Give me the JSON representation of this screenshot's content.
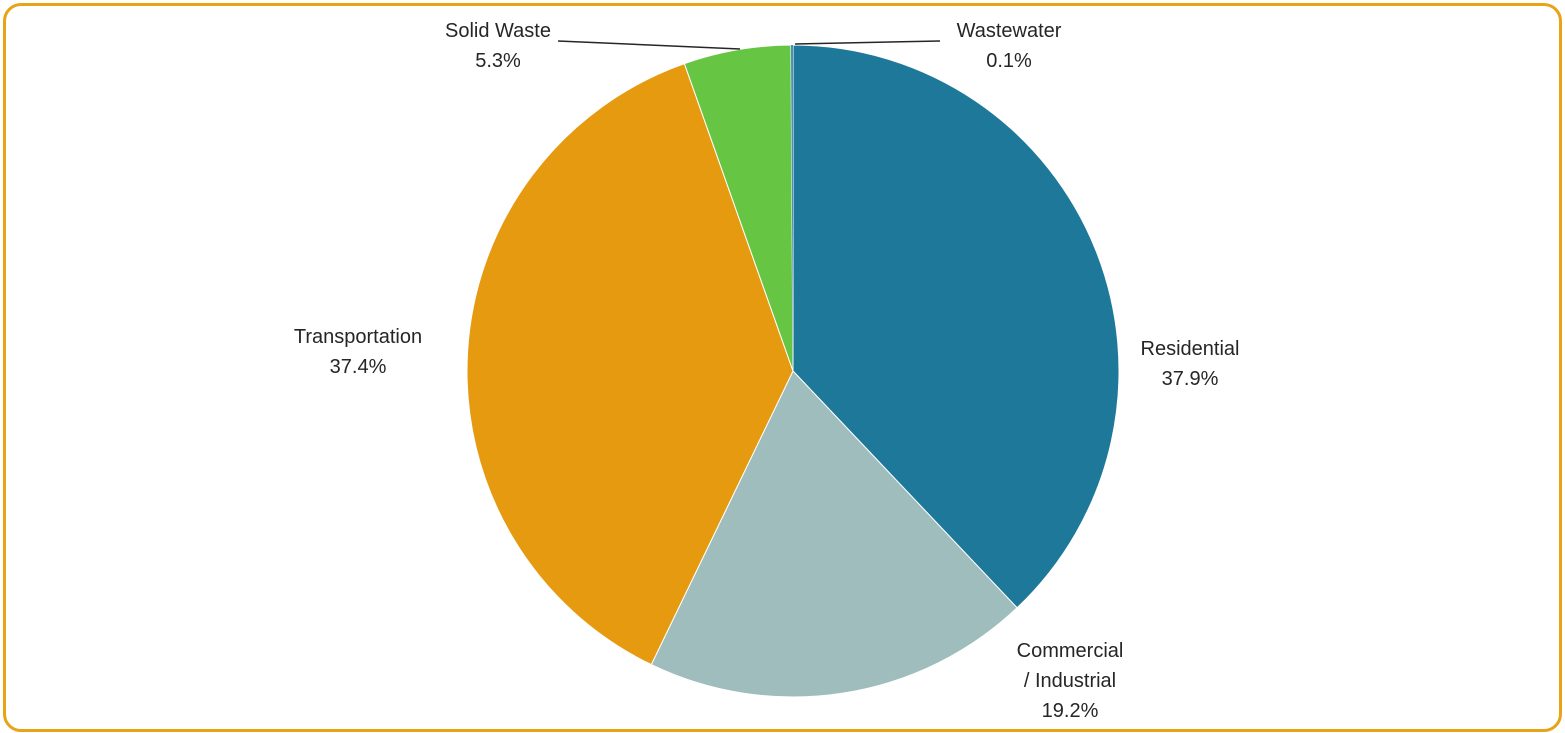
{
  "chart_data": {
    "type": "pie",
    "title": "",
    "start_angle_deg": 0,
    "direction": "clockwise",
    "legend": "none",
    "slices": [
      {
        "name": "Residential",
        "label_lines": [
          "Residential"
        ],
        "value": 37.9,
        "value_label": "37.9%",
        "color": "#1e7899"
      },
      {
        "name": "Commercial / Industrial",
        "label_lines": [
          "Commercial",
          "/ Industrial"
        ],
        "value": 19.2,
        "value_label": "19.2%",
        "color": "#9fbdbd"
      },
      {
        "name": "Transportation",
        "label_lines": [
          "Transportation"
        ],
        "value": 37.4,
        "value_label": "37.4%",
        "color": "#e59a10"
      },
      {
        "name": "Solid Waste",
        "label_lines": [
          "Solid Waste"
        ],
        "value": 5.3,
        "value_label": "5.3%",
        "color": "#66c644"
      },
      {
        "name": "Wastewater",
        "label_lines": [
          "Wastewater"
        ],
        "value": 0.1,
        "value_label": "0.1%",
        "color": "#4a8fb8"
      }
    ],
    "frame_color": "#e8a317"
  }
}
